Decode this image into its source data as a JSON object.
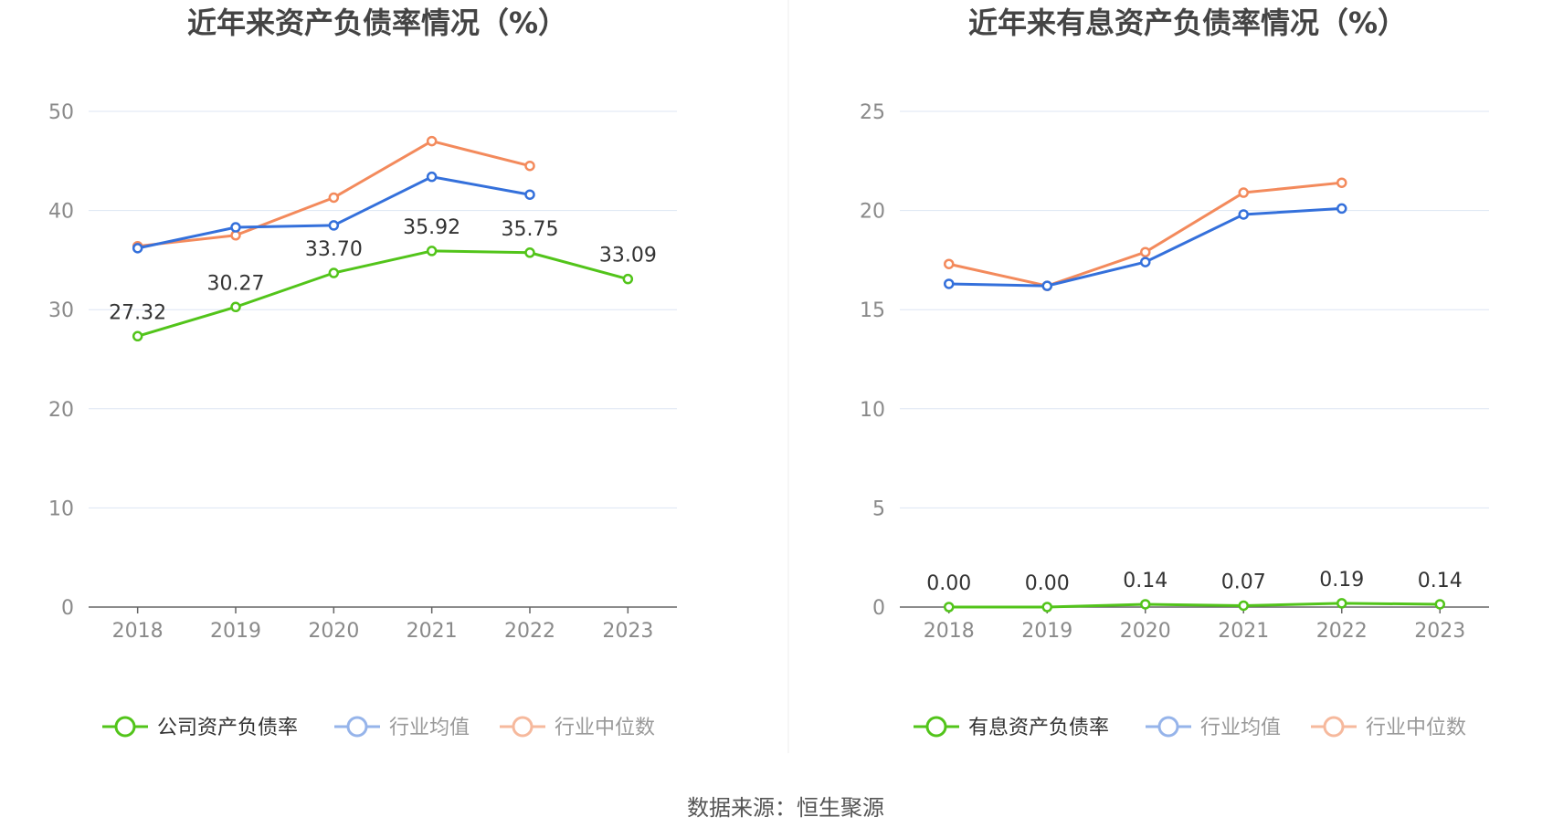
{
  "source": "数据来源：恒生聚源",
  "colors": {
    "company": "#52c41a",
    "industry_avg": "#3470db",
    "industry_median": "#f38a5c",
    "legend_avg_faded": "#96b4ea",
    "legend_median_faded": "#f6b99d",
    "grid": "#dde6f3",
    "axis": "#666666"
  },
  "chart_data": [
    {
      "type": "line",
      "title": "近年来资产负债率情况（%）",
      "categories": [
        "2018",
        "2019",
        "2020",
        "2021",
        "2022",
        "2023"
      ],
      "ylim": [
        0,
        50
      ],
      "yticks": [
        "0",
        "10",
        "20",
        "30",
        "40",
        "50"
      ],
      "grid": true,
      "legend_position": "bottom",
      "series": [
        {
          "name": "公司资产负债率",
          "values": [
            27.32,
            30.27,
            33.7,
            35.92,
            35.75,
            33.09
          ],
          "labels": [
            "27.32",
            "30.27",
            "33.70",
            "35.92",
            "35.75",
            "33.09"
          ]
        },
        {
          "name": "行业均值",
          "values": [
            36.2,
            38.3,
            38.5,
            43.4,
            41.6,
            null
          ]
        },
        {
          "name": "行业中位数",
          "values": [
            36.4,
            37.5,
            41.3,
            47.0,
            44.5,
            null
          ]
        }
      ]
    },
    {
      "type": "line",
      "title": "近年来有息资产负债率情况（%）",
      "categories": [
        "2018",
        "2019",
        "2020",
        "2021",
        "2022",
        "2023"
      ],
      "ylim": [
        0,
        25
      ],
      "yticks": [
        "0",
        "5",
        "10",
        "15",
        "20",
        "25"
      ],
      "grid": true,
      "legend_position": "bottom",
      "series": [
        {
          "name": "有息资产负债率",
          "values": [
            0.0,
            0.0,
            0.14,
            0.07,
            0.19,
            0.14
          ],
          "labels": [
            "0.00",
            "0.00",
            "0.14",
            "0.07",
            "0.19",
            "0.14"
          ]
        },
        {
          "name": "行业均值",
          "values": [
            16.3,
            16.2,
            17.4,
            19.8,
            20.1,
            null
          ]
        },
        {
          "name": "行业中位数",
          "values": [
            17.3,
            16.2,
            17.9,
            20.9,
            21.4,
            null
          ]
        }
      ]
    }
  ]
}
